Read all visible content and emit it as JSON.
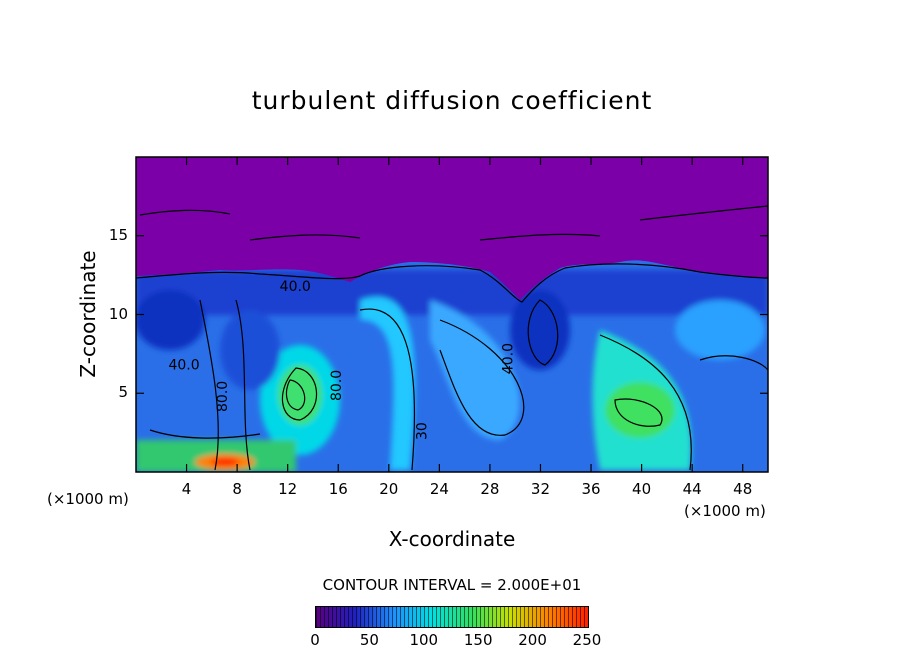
{
  "chart_data": {
    "type": "heatmap",
    "title": "turbulent diffusion coefficient",
    "xlabel": "X-coordinate",
    "ylabel": "Z-coordinate",
    "x_unit": "(×1000 m)",
    "xlim": [
      0,
      50
    ],
    "ylim": [
      0,
      20
    ],
    "x_ticks": [
      4,
      8,
      12,
      16,
      20,
      24,
      28,
      32,
      36,
      40,
      44,
      48
    ],
    "y_ticks": [
      5,
      10,
      15
    ],
    "contour_interval_text": "CONTOUR INTERVAL = 2.000E+01",
    "contour_labels": [
      {
        "text": "40.0",
        "x": 12.6,
        "z": 11.5,
        "rotate": 0
      },
      {
        "text": "40.0",
        "x": 3.8,
        "z": 6.5,
        "rotate": 0
      },
      {
        "text": "80.0",
        "x": 7.2,
        "z": 4.8,
        "rotate": -90
      },
      {
        "text": "80.0",
        "x": 16.2,
        "z": 5.5,
        "rotate": -90
      },
      {
        "text": "40.0",
        "x": 29.8,
        "z": 7.2,
        "rotate": -90
      },
      {
        "text": "30",
        "x": 23.0,
        "z": 2.6,
        "rotate": -90
      }
    ],
    "colorbar": {
      "min": 0,
      "max": 250,
      "ticks": [
        0,
        50,
        100,
        150,
        200,
        250
      ],
      "colors": [
        "#5a0080",
        "#2020c0",
        "#1e90ff",
        "#00e0e0",
        "#30e060",
        "#c8e000",
        "#ff8000",
        "#ff2000"
      ]
    },
    "colors": {
      "stratosphere": "#7b00a8",
      "low": "#1e4fe0",
      "mid": "#2aa0ff",
      "cyan": "#00e0e0",
      "green": "#30e060",
      "high": "#ff6000"
    }
  }
}
